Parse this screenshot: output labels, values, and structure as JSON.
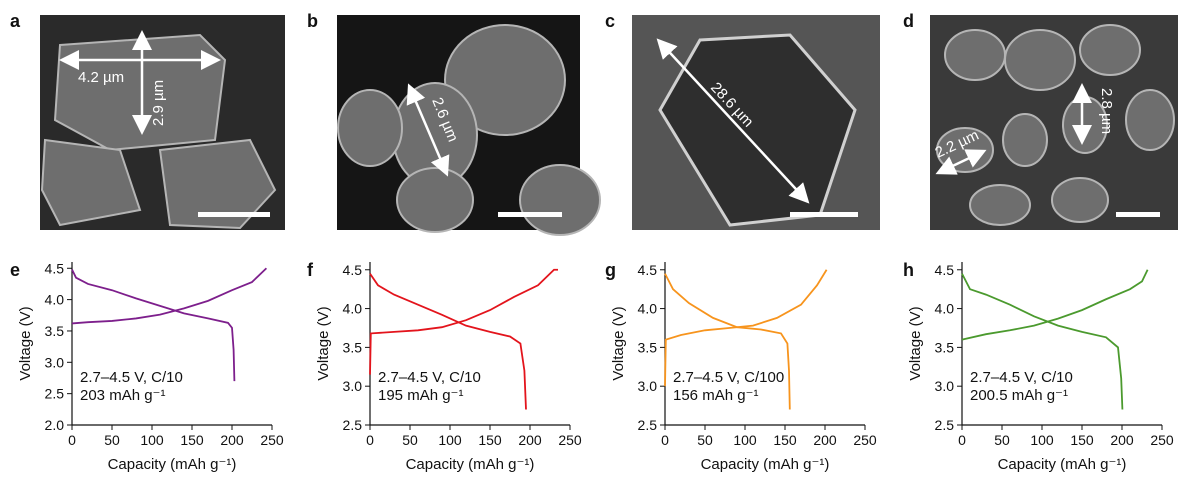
{
  "images": [
    {
      "label": "a",
      "annotations": [
        "4.2 µm",
        "2.9 µm"
      ]
    },
    {
      "label": "b",
      "annotations": [
        "2.6 µm"
      ]
    },
    {
      "label": "c",
      "annotations": [
        "28.6 µm"
      ]
    },
    {
      "label": "d",
      "annotations": [
        "2.8 µm",
        "2.2 µm"
      ]
    }
  ],
  "chart_data": [
    {
      "type": "line",
      "label": "e",
      "xlabel": "Capacity (mAh g⁻¹)",
      "ylabel": "Voltage (V)",
      "annotations": [
        "2.7–4.5 V, C/10",
        "203 mAh g⁻¹"
      ],
      "xlim": [
        0,
        250
      ],
      "xticks": [
        0,
        50,
        100,
        150,
        200,
        250
      ],
      "ylim": [
        2.0,
        4.6
      ],
      "yticks": [
        {
          "value": 2,
          "label": "2.0"
        },
        2.5,
        {
          "value": 3,
          "label": "3.0"
        },
        3.5,
        {
          "value": 4,
          "label": "4.0"
        },
        4.5
      ],
      "series": [
        {
          "color": "#7d1f8c",
          "x": [
            0,
            20,
            50,
            80,
            110,
            140,
            170,
            200,
            225,
            243
          ],
          "values": [
            3.62,
            3.64,
            3.66,
            3.7,
            3.76,
            3.86,
            3.98,
            4.15,
            4.28,
            4.5
          ]
        },
        {
          "color": "#7d1f8c",
          "x": [
            0,
            5,
            20,
            50,
            80,
            110,
            140,
            170,
            195,
            200,
            202,
            203
          ],
          "values": [
            4.48,
            4.35,
            4.25,
            4.15,
            4.02,
            3.9,
            3.78,
            3.7,
            3.63,
            3.55,
            3.2,
            2.7
          ]
        }
      ]
    },
    {
      "type": "line",
      "label": "f",
      "xlabel": "Capacity (mAh g⁻¹)",
      "ylabel": "Voltage (V)",
      "annotations": [
        "2.7–4.5 V, C/10",
        "195 mAh g⁻¹"
      ],
      "xlim": [
        0,
        250
      ],
      "xticks": [
        0,
        50,
        100,
        150,
        200,
        250
      ],
      "ylim": [
        2.5,
        4.6
      ],
      "yticks": [
        2.5,
        {
          "value": 3,
          "label": "3.0"
        },
        3.5,
        {
          "value": 4,
          "label": "4.0"
        },
        4.5
      ],
      "series": [
        {
          "color": "#e3141c",
          "x": [
            0,
            1,
            30,
            60,
            90,
            120,
            150,
            180,
            210,
            225,
            230,
            235
          ],
          "values": [
            3.15,
            3.68,
            3.7,
            3.72,
            3.76,
            3.85,
            3.98,
            4.15,
            4.3,
            4.45,
            4.5,
            4.5
          ]
        },
        {
          "color": "#e3141c",
          "x": [
            0,
            10,
            30,
            60,
            90,
            120,
            150,
            175,
            188,
            193,
            195
          ],
          "values": [
            4.45,
            4.3,
            4.18,
            4.05,
            3.92,
            3.78,
            3.7,
            3.64,
            3.55,
            3.2,
            2.7
          ]
        }
      ]
    },
    {
      "type": "line",
      "label": "g",
      "xlabel": "Capacity (mAh g⁻¹)",
      "ylabel": "Voltage (V)",
      "annotations": [
        "2.7–4.5 V, C/100",
        "156 mAh g⁻¹"
      ],
      "xlim": [
        0,
        250
      ],
      "xticks": [
        0,
        50,
        100,
        150,
        200,
        250
      ],
      "ylim": [
        2.5,
        4.6
      ],
      "yticks": [
        2.5,
        {
          "value": 3,
          "label": "3.0"
        },
        3.5,
        {
          "value": 4,
          "label": "4.0"
        },
        4.5
      ],
      "series": [
        {
          "color": "#f7941d",
          "x": [
            0,
            1,
            20,
            50,
            80,
            110,
            140,
            170,
            190,
            202
          ],
          "values": [
            3.0,
            3.6,
            3.66,
            3.72,
            3.75,
            3.78,
            3.88,
            4.05,
            4.3,
            4.5
          ]
        },
        {
          "color": "#f7941d",
          "x": [
            0,
            10,
            30,
            60,
            90,
            120,
            145,
            153,
            155,
            156
          ],
          "values": [
            4.45,
            4.25,
            4.07,
            3.88,
            3.76,
            3.73,
            3.68,
            3.55,
            3.2,
            2.7
          ]
        }
      ]
    },
    {
      "type": "line",
      "label": "h",
      "xlabel": "Capacity (mAh g⁻¹)",
      "ylabel": "Voltage (V)",
      "annotations": [
        "2.7–4.5 V, C/10",
        "200.5 mAh g⁻¹"
      ],
      "xlim": [
        0,
        250
      ],
      "xticks": [
        0,
        50,
        100,
        150,
        200,
        250
      ],
      "ylim": [
        2.5,
        4.6
      ],
      "yticks": [
        2.5,
        {
          "value": 3,
          "label": "3.0"
        },
        3.5,
        {
          "value": 4,
          "label": "4.0"
        },
        4.5
      ],
      "series": [
        {
          "color": "#4b9a2e",
          "x": [
            0,
            30,
            60,
            90,
            120,
            150,
            180,
            210,
            225,
            232
          ],
          "values": [
            3.6,
            3.67,
            3.72,
            3.78,
            3.87,
            3.98,
            4.12,
            4.25,
            4.35,
            4.5
          ]
        },
        {
          "color": "#4b9a2e",
          "x": [
            0,
            10,
            30,
            60,
            90,
            120,
            150,
            180,
            195,
            199,
            200.5
          ],
          "values": [
            4.45,
            4.25,
            4.18,
            4.05,
            3.9,
            3.78,
            3.7,
            3.63,
            3.5,
            3.1,
            2.7
          ]
        }
      ]
    }
  ]
}
